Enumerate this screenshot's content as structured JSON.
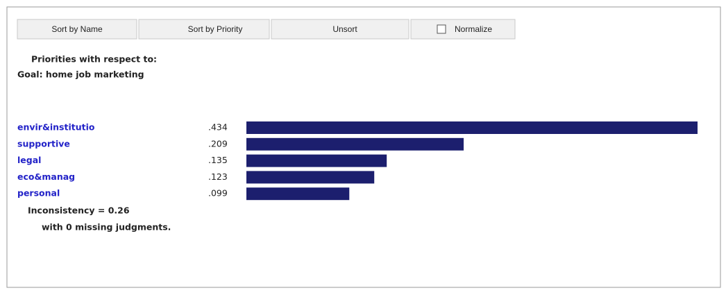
{
  "toolbar": {
    "buttons": [
      "Sort by Name",
      "Sort by Priority",
      "Unsort"
    ],
    "checkbox": "Normalize"
  },
  "header": {
    "line1": "Priorities with respect to:",
    "line2": "Goal: home job marketing"
  },
  "chart_data": {
    "type": "bar",
    "orientation": "horizontal",
    "categories": [
      "envir&institutio",
      "supportive",
      "legal",
      "eco&manag",
      "personal"
    ],
    "values": [
      0.434,
      0.209,
      0.135,
      0.123,
      0.099
    ],
    "value_labels": [
      ".434",
      ".209",
      ".135",
      ".123",
      ".099"
    ],
    "color": "#1c1f6e",
    "label_color": "#2323c8"
  },
  "footer": {
    "line1": "Inconsistency = 0.26",
    "line2": "with 0  missing judgments."
  }
}
